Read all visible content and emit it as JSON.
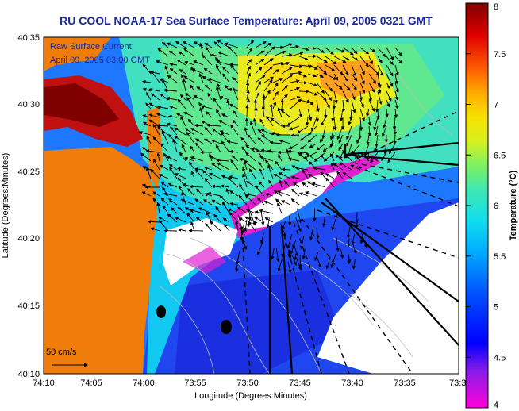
{
  "title": "RU COOL  NOAA-17  Sea Surface Temperature:  April 09, 2005 0321 GMT",
  "inset": {
    "line1": "Raw Surface Current:",
    "line2": "April 09, 2005 03:00 GMT",
    "scale_label": "50 cm/s"
  },
  "axes": {
    "xlabel": "Longitude (Degrees:Minutes)",
    "ylabel": "Latitude (Degrees:Minutes)",
    "x_ticks": [
      "74:10",
      "74:05",
      "74:00",
      "73:55",
      "73:50",
      "73:45",
      "73:40",
      "73:35",
      "73:3"
    ],
    "y_ticks": [
      "40:35",
      "40:30",
      "40:25",
      "40:20",
      "40:15",
      "40:10"
    ]
  },
  "colorbar": {
    "label": "Temperature (°C)",
    "ticks": [
      "8",
      "7.5",
      "7",
      "6.5",
      "6",
      "5.5",
      "5",
      "4.5",
      "4"
    ],
    "min": 4,
    "max": 8
  },
  "colors": {
    "land": "#f07d0a",
    "title": "#1a2a9c"
  }
}
